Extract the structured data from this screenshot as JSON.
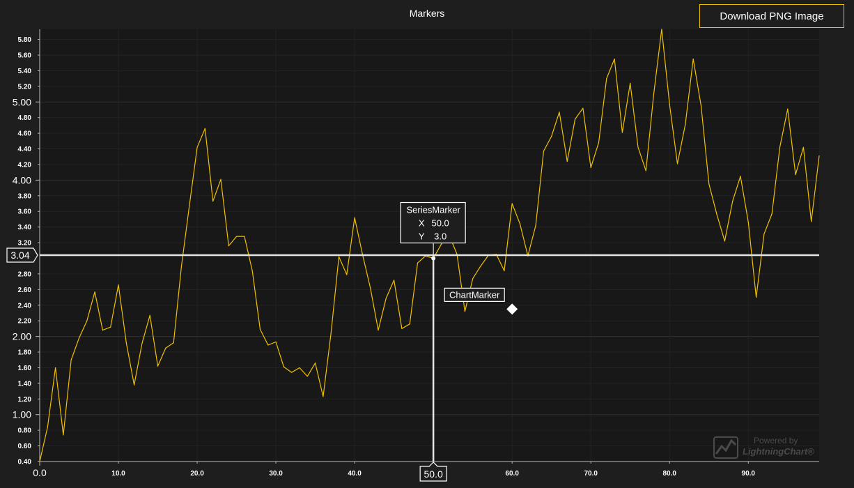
{
  "header": {
    "title": "Markers",
    "download_label": "Download PNG Image"
  },
  "watermark": {
    "powered": "Powered by",
    "brand": "LightningChart®",
    "icon": "lightningchart-logo-icon"
  },
  "colors": {
    "background": "#1e1e1e",
    "plot_background": "#181818",
    "series": "#f2c200",
    "marker": "#ffffff",
    "grid": "#2c2c2c",
    "axis_text": "#ffffff"
  },
  "chart_data": {
    "type": "line",
    "title": "Markers",
    "xlabel": "",
    "ylabel": "",
    "xlim": [
      0,
      99
    ],
    "ylim": [
      0.4,
      5.93
    ],
    "grid": true,
    "x_major_ticks": [
      "0.0",
      "50.0"
    ],
    "x_minor_ticks": [
      "10.0",
      "20.0",
      "30.0",
      "40.0",
      "60.0",
      "70.0",
      "80.0",
      "90.0"
    ],
    "y_major_ticks": [
      "1.00",
      "2.00",
      "3.04",
      "4.00",
      "5.00"
    ],
    "y_minor_ticks": [
      "0.40",
      "0.60",
      "0.80",
      "1.20",
      "1.40",
      "1.60",
      "1.80",
      "2.20",
      "2.40",
      "2.60",
      "2.80",
      "3.20",
      "3.40",
      "3.60",
      "3.80",
      "4.20",
      "4.40",
      "4.60",
      "4.80",
      "5.20",
      "5.40",
      "5.60",
      "5.80"
    ],
    "series": [
      {
        "x": [
          0,
          1,
          2,
          3,
          4,
          5,
          6,
          7,
          8,
          9,
          10,
          11,
          12,
          13,
          14,
          15,
          16,
          17,
          18,
          19,
          20,
          21,
          22,
          23,
          24,
          25,
          26,
          27,
          28,
          29,
          30,
          31,
          32,
          33,
          34,
          35,
          36,
          37,
          38,
          39,
          40,
          41,
          42,
          43,
          44,
          45,
          46,
          47,
          48,
          49,
          50,
          51,
          52,
          53,
          54,
          55,
          56,
          57,
          58,
          59,
          60,
          61,
          62,
          63,
          64,
          65,
          66,
          67,
          68,
          69,
          70,
          71,
          72,
          73,
          74,
          75,
          76,
          77,
          78,
          79,
          80,
          81,
          82,
          83,
          84,
          85,
          86,
          87,
          88,
          89,
          90,
          91,
          92,
          93,
          94,
          95,
          96,
          97,
          98,
          99
        ],
        "y": [
          0.4,
          0.84,
          1.6,
          0.74,
          1.7,
          1.98,
          2.2,
          2.57,
          2.08,
          2.12,
          2.66,
          1.92,
          1.38,
          1.91,
          2.27,
          1.62,
          1.85,
          1.92,
          2.9,
          3.67,
          4.42,
          4.66,
          3.73,
          4.01,
          3.16,
          3.28,
          3.28,
          2.84,
          2.09,
          1.89,
          1.93,
          1.61,
          1.54,
          1.6,
          1.49,
          1.66,
          1.23,
          2.04,
          3.02,
          2.79,
          3.52,
          3.05,
          2.62,
          2.08,
          2.49,
          2.72,
          2.1,
          2.16,
          2.94,
          3.03,
          3.0,
          3.18,
          3.3,
          3.05,
          2.32,
          2.74,
          2.9,
          3.04,
          3.05,
          2.84,
          3.7,
          3.44,
          3.03,
          3.42,
          4.37,
          4.56,
          4.87,
          4.24,
          4.78,
          4.92,
          4.16,
          4.48,
          5.3,
          5.55,
          4.61,
          5.24,
          4.42,
          4.12,
          5.11,
          5.93,
          4.97,
          4.21,
          4.71,
          5.55,
          4.95,
          3.95,
          3.56,
          3.22,
          3.73,
          4.05,
          3.46,
          2.5,
          3.31,
          3.57,
          4.42,
          4.91,
          4.07,
          4.42,
          3.47,
          4.31
        ]
      }
    ],
    "crosshair": {
      "x_label": "50.0",
      "y_label": "3.04",
      "y_value": 3.04
    },
    "series_marker": {
      "title": "SeriesMarker",
      "x_label": "X",
      "x_value": "50.0",
      "y_label": "Y",
      "y_value": "3.0",
      "x": 50,
      "y": 3.0
    },
    "chart_marker": {
      "label": "ChartMarker",
      "x": 60,
      "y": 2.35
    }
  }
}
